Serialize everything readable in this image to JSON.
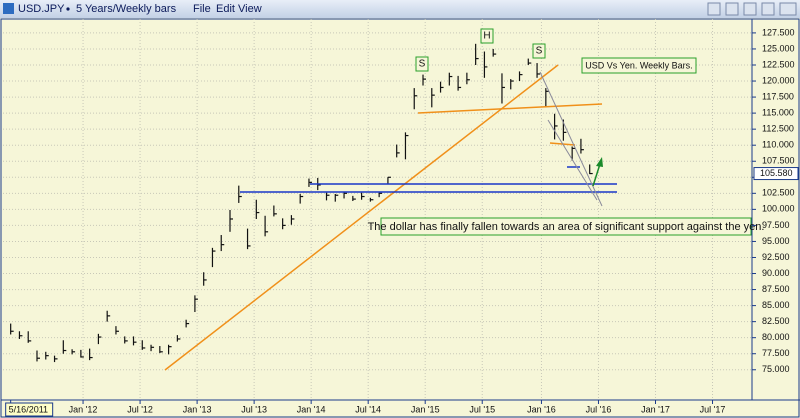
{
  "window": {
    "symbol": "USD.JPY",
    "period": "5 Years/Weekly bars",
    "menu": [
      "File",
      "Edit",
      "View"
    ]
  },
  "chart_data": {
    "type": "ohlc",
    "x": [
      0,
      4,
      8,
      12,
      16,
      20,
      24,
      28,
      32,
      36,
      40,
      44,
      48,
      52,
      56,
      60,
      64,
      68,
      72,
      76,
      80,
      84,
      88,
      92,
      96,
      100,
      104,
      108,
      112,
      116,
      120,
      124,
      128,
      132,
      136,
      140,
      144,
      148,
      152,
      156,
      160,
      164,
      168,
      172,
      176,
      180,
      184,
      188,
      192,
      196,
      200,
      204,
      208,
      212,
      216,
      220,
      224,
      228,
      232,
      236,
      240,
      244,
      248,
      252,
      256,
      260,
      264
    ],
    "high": [
      82.2,
      81.0,
      81.0,
      78.0,
      77.8,
      77.2,
      79.6,
      78.2,
      78.1,
      78.3,
      80.6,
      84.2,
      81.8,
      80.2,
      80.2,
      79.6,
      78.9,
      78.7,
      78.9,
      80.4,
      82.8,
      86.6,
      90.2,
      94.0,
      96.0,
      99.9,
      103.7,
      97.0,
      101.5,
      99.0,
      100.6,
      98.6,
      99.1,
      102.4,
      104.8,
      104.9,
      102.6,
      102.4,
      102.7,
      102.1,
      102.6,
      101.8,
      102.6,
      105.0,
      110.1,
      112.0,
      118.9,
      121.0,
      118.9,
      119.9,
      121.3,
      120.8,
      121.3,
      125.8,
      124.6,
      125.0,
      121.2,
      120.3,
      121.5,
      123.5,
      122.8,
      118.9,
      114.9,
      114.0,
      109.8,
      111.0,
      107.0
    ],
    "low": [
      80.5,
      79.8,
      79.2,
      76.3,
      76.6,
      76.2,
      77.5,
      77.4,
      76.9,
      76.5,
      79.0,
      82.5,
      80.5,
      79.1,
      78.8,
      78.1,
      77.9,
      77.6,
      77.4,
      79.4,
      81.6,
      84.0,
      88.1,
      91.0,
      93.5,
      96.5,
      101.0,
      93.8,
      98.5,
      95.8,
      98.9,
      96.9,
      97.6,
      100.9,
      103.5,
      103.0,
      101.4,
      101.2,
      101.7,
      101.3,
      101.5,
      101.2,
      101.9,
      103.9,
      108.1,
      107.8,
      115.6,
      119.3,
      115.9,
      118.2,
      119.3,
      118.5,
      119.5,
      122.5,
      120.5,
      123.8,
      116.5,
      118.7,
      120.0,
      122.5,
      120.5,
      115.9,
      110.9,
      110.7,
      107.6,
      108.7,
      105.5
    ],
    "close": [
      81.0,
      80.3,
      79.5,
      76.8,
      77.2,
      76.7,
      78.0,
      77.8,
      77.0,
      76.9,
      80.1,
      83.4,
      81.0,
      79.5,
      79.3,
      78.4,
      78.5,
      77.8,
      78.6,
      79.8,
      82.2,
      86.0,
      89.0,
      93.5,
      94.5,
      98.5,
      102.0,
      94.3,
      99.5,
      96.5,
      99.3,
      97.5,
      98.5,
      102.0,
      104.2,
      103.8,
      102.2,
      102.2,
      102.5,
      101.6,
      102.0,
      101.5,
      102.5,
      105.0,
      108.8,
      111.5,
      117.7,
      120.3,
      117.8,
      119.0,
      120.7,
      119.0,
      120.2,
      123.5,
      122.2,
      124.2,
      119.0,
      120.0,
      121.0,
      122.8,
      121.1,
      118.4,
      113.0,
      112.0,
      109.5,
      109.3,
      105.58
    ],
    "color": "#111111",
    "xlim": [
      -3.5,
      338
    ],
    "xticks": [
      {
        "value": 0,
        "label": "5/16/2011"
      },
      {
        "value": 33,
        "label": "Jan '12"
      },
      {
        "value": 59,
        "label": "Jul '12"
      },
      {
        "value": 85,
        "label": "Jan '13"
      },
      {
        "value": 111,
        "label": "Jul '13"
      },
      {
        "value": 137,
        "label": "Jan '14"
      },
      {
        "value": 163,
        "label": "Jul '14"
      },
      {
        "value": 189,
        "label": "Jan '15"
      },
      {
        "value": 215,
        "label": "Jul '15"
      },
      {
        "value": 242,
        "label": "Jan '16"
      },
      {
        "value": 268,
        "label": "Jul '16"
      },
      {
        "value": 294,
        "label": "Jan '17"
      },
      {
        "value": 320,
        "label": "Jul '17"
      }
    ],
    "ylim": [
      70.6,
      129.2
    ],
    "yticks": [
      {
        "value": 75,
        "label": "75.000"
      },
      {
        "value": 77.5,
        "label": "77.500"
      },
      {
        "value": 80,
        "label": "80.000"
      },
      {
        "value": 82.5,
        "label": "82.500"
      },
      {
        "value": 85,
        "label": "85.000"
      },
      {
        "value": 87.5,
        "label": "87.500"
      },
      {
        "value": 90,
        "label": "90.000"
      },
      {
        "value": 92.5,
        "label": "92.500"
      },
      {
        "value": 95,
        "label": "95.000"
      },
      {
        "value": 97.5,
        "label": "97.500"
      },
      {
        "value": 100,
        "label": "100.000"
      },
      {
        "value": 102.5,
        "label": "102.500"
      },
      {
        "value": 105,
        "label": "105.000"
      },
      {
        "value": 107.5,
        "label": "107.500"
      },
      {
        "value": 110,
        "label": "110.000"
      },
      {
        "value": 112.5,
        "label": "112.500"
      },
      {
        "value": 115,
        "label": "115.000"
      },
      {
        "value": 117.5,
        "label": "117.500"
      },
      {
        "value": 120,
        "label": "120.000"
      },
      {
        "value": 122.5,
        "label": "122.500"
      },
      {
        "value": 125,
        "label": "125.000"
      },
      {
        "value": 127.5,
        "label": "127.500"
      }
    ],
    "grid": true,
    "last_price": {
      "value": 105.58,
      "label": "105.580"
    },
    "annotations": [
      "S",
      "H",
      "S",
      "USD Vs Yen. Weekly Bars.",
      "The dollar has finally fallen towards an area of significant support against the yen."
    ]
  }
}
